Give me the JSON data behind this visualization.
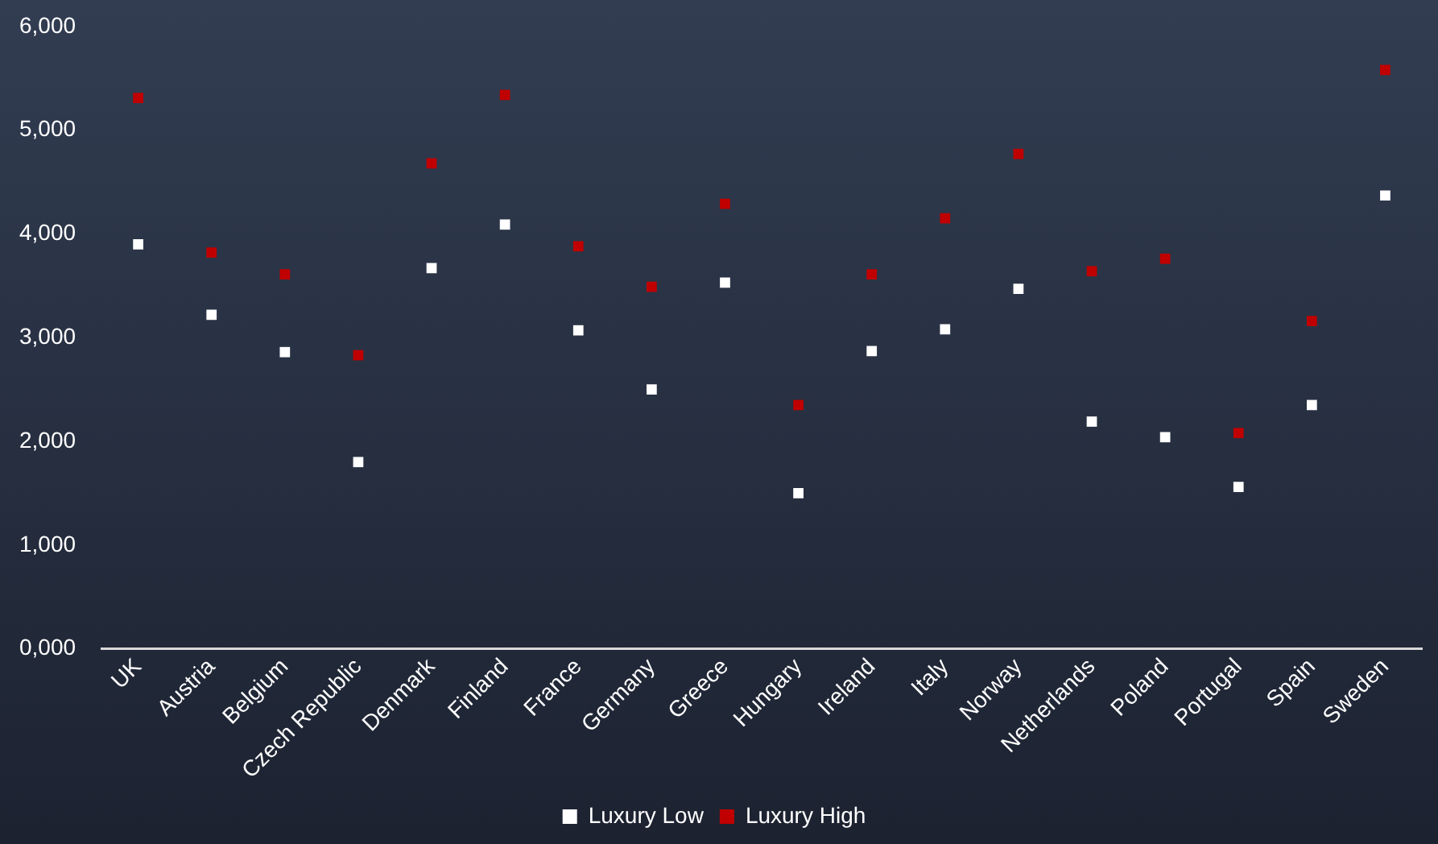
{
  "chart_data": {
    "type": "scatter",
    "categories": [
      "UK",
      "Austria",
      "Belgium",
      "Czech Republic",
      "Denmark",
      "Finland",
      "France",
      "Germany",
      "Greece",
      "Hungary",
      "Ireland",
      "Italy",
      "Norway",
      "Netherlands",
      "Poland",
      "Portugal",
      "Spain",
      "Sweden"
    ],
    "series": [
      {
        "name": "Luxury Low",
        "color": "#ffffff",
        "values": [
          3900,
          3220,
          2860,
          1800,
          3670,
          4090,
          3070,
          2500,
          3530,
          1500,
          2870,
          3080,
          3470,
          2190,
          2040,
          1560,
          2350,
          4370
        ]
      },
      {
        "name": "Luxury High",
        "color": "#c00000",
        "values": [
          5310,
          3820,
          3610,
          2830,
          4680,
          5340,
          3880,
          3490,
          4290,
          2350,
          3610,
          4150,
          4770,
          3640,
          3760,
          2080,
          3160,
          5580
        ]
      }
    ],
    "ylim": [
      0,
      6000
    ],
    "yticks": [
      {
        "value": 0,
        "label": "0,000"
      },
      {
        "value": 1000,
        "label": "1,000"
      },
      {
        "value": 2000,
        "label": "2,000"
      },
      {
        "value": 3000,
        "label": "3,000"
      },
      {
        "value": 4000,
        "label": "4,000"
      },
      {
        "value": 5000,
        "label": "5,000"
      },
      {
        "value": 6000,
        "label": "6,000"
      }
    ],
    "grid": false,
    "legend": "bottom",
    "marker": "square"
  }
}
